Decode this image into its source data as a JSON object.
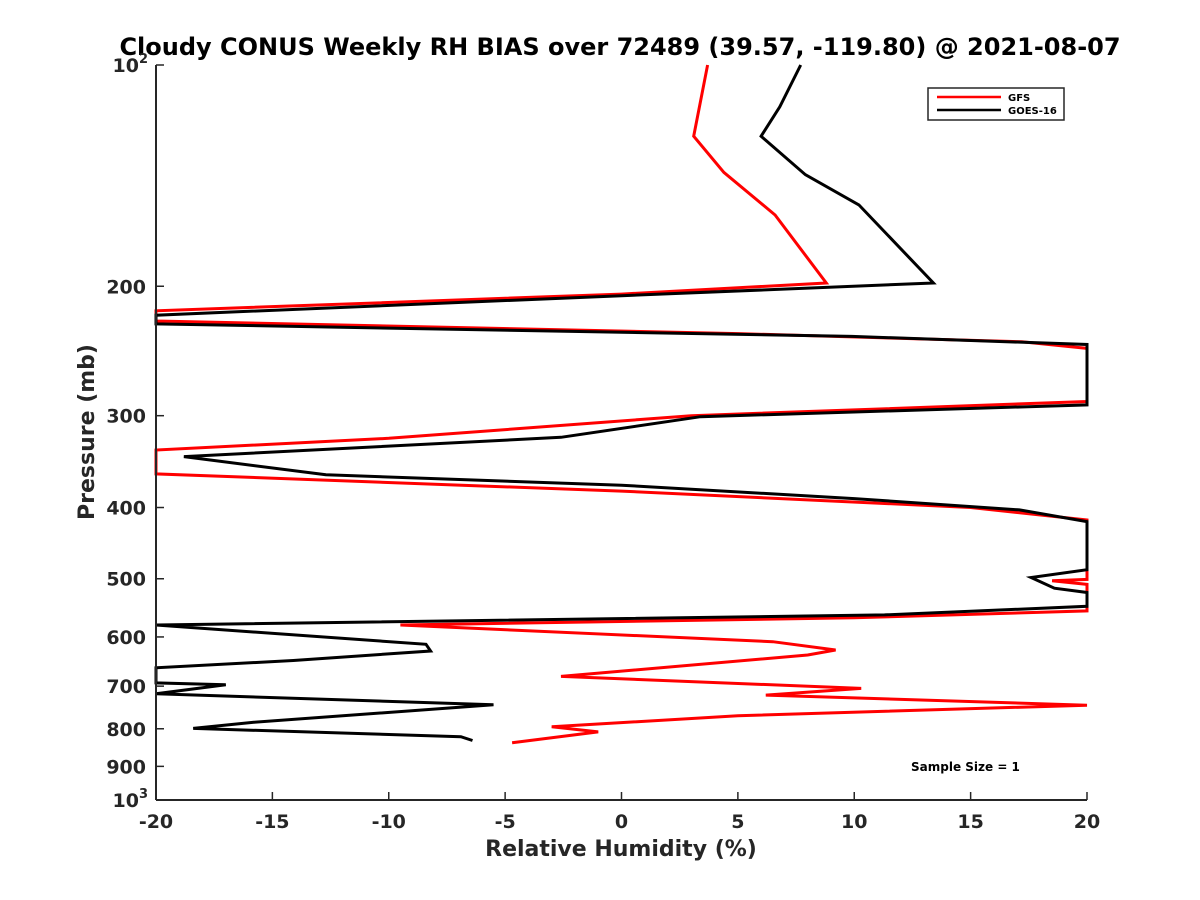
{
  "chart_data": {
    "type": "line",
    "title": "Cloudy CONUS Weekly RH BIAS over 72489 (39.57, -119.80) @ 2021-08-07",
    "xlabel": "Relative Humidity (%)",
    "ylabel": "Pressure (mb)",
    "xlim": [
      -20,
      20
    ],
    "ylim": [
      100,
      1000
    ],
    "yscale": "log",
    "y_reversed": true,
    "x_ticks": [
      "-20",
      "-15",
      "-10",
      "-5",
      "0",
      "5",
      "10",
      "15",
      "20"
    ],
    "y_ticks": [
      {
        "value": 100,
        "base": "10",
        "exp": "2"
      },
      {
        "value": 200,
        "label": "200"
      },
      {
        "value": 300,
        "label": "300"
      },
      {
        "value": 400,
        "label": "400"
      },
      {
        "value": 500,
        "label": "500"
      },
      {
        "value": 600,
        "label": "600"
      },
      {
        "value": 700,
        "label": "700"
      },
      {
        "value": 800,
        "label": "800"
      },
      {
        "value": 900,
        "label": "900"
      },
      {
        "value": 1000,
        "base": "10",
        "exp": "3"
      }
    ],
    "grid": false,
    "legend_position": "top-right",
    "annotation": "Sample Size = 1",
    "series": [
      {
        "name": "GFS",
        "color": "#ff0000",
        "points": [
          [
            3.7,
            100
          ],
          [
            3.1,
            125
          ],
          [
            4.4,
            140
          ],
          [
            6.6,
            160
          ],
          [
            8.8,
            198
          ],
          [
            0,
            205
          ],
          [
            -20,
            216
          ],
          [
            -20,
            223
          ],
          [
            5,
            232
          ],
          [
            17.2,
            238
          ],
          [
            20,
            243
          ],
          [
            20,
            287
          ],
          [
            3,
            300
          ],
          [
            -10,
            322
          ],
          [
            -20,
            334
          ],
          [
            -20,
            360
          ],
          [
            0,
            380
          ],
          [
            15,
            400
          ],
          [
            20,
            416
          ],
          [
            20,
            501
          ],
          [
            18.5,
            503
          ],
          [
            20,
            509
          ],
          [
            20,
            553
          ],
          [
            10,
            565
          ],
          [
            -9.5,
            578
          ],
          [
            6.5,
            609
          ],
          [
            9.2,
            625
          ],
          [
            8,
            635
          ],
          [
            -2.6,
            679
          ],
          [
            10.3,
            705
          ],
          [
            6.2,
            720
          ],
          [
            20,
            743
          ],
          [
            5,
            768
          ],
          [
            -3,
            795
          ],
          [
            -1,
            808
          ],
          [
            -4.7,
            836
          ]
        ]
      },
      {
        "name": "GOES-16",
        "color": "#000000",
        "points": [
          [
            7.7,
            100
          ],
          [
            6.8,
            114
          ],
          [
            6,
            125
          ],
          [
            7.9,
            141
          ],
          [
            10.2,
            155
          ],
          [
            13.4,
            198
          ],
          [
            0,
            206
          ],
          [
            -20,
            219
          ],
          [
            -20,
            225
          ],
          [
            9.9,
            234
          ],
          [
            20,
            240
          ],
          [
            20,
            290
          ],
          [
            3.4,
            301
          ],
          [
            -2.6,
            321
          ],
          [
            -18.8,
            341
          ],
          [
            -12.7,
            361
          ],
          [
            0,
            373
          ],
          [
            10,
            389
          ],
          [
            17.1,
            403
          ],
          [
            20,
            418
          ],
          [
            20,
            486
          ],
          [
            17.6,
            498
          ],
          [
            18.6,
            515
          ],
          [
            20,
            522
          ],
          [
            20,
            545
          ],
          [
            11.3,
            560
          ],
          [
            -20,
            578
          ],
          [
            -8.4,
            614
          ],
          [
            -8.2,
            627
          ],
          [
            -14.1,
            646
          ],
          [
            -20,
            661
          ],
          [
            -20,
            693
          ],
          [
            -17,
            697
          ],
          [
            -20,
            717
          ],
          [
            -5.5,
            742
          ],
          [
            -15.8,
            784
          ],
          [
            -18.4,
            799
          ],
          [
            -6.9,
            820
          ],
          [
            -6.4,
            830
          ]
        ]
      }
    ]
  }
}
